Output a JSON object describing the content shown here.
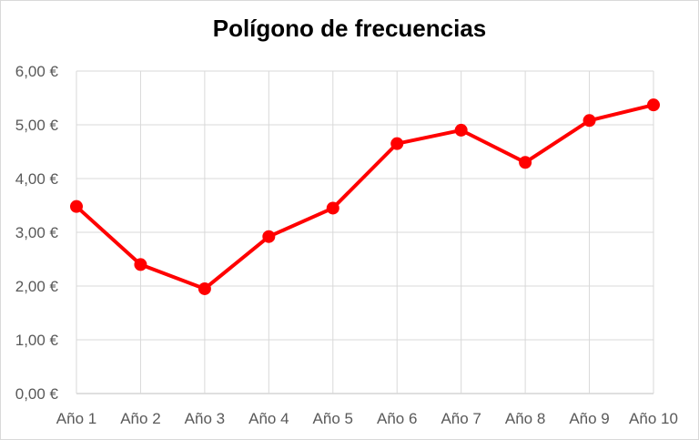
{
  "chart_data": {
    "type": "line",
    "title": "Polígono de frecuencias",
    "categories": [
      "Año 1",
      "Año 2",
      "Año 3",
      "Año 4",
      "Año 5",
      "Año 6",
      "Año 7",
      "Año 8",
      "Año 9",
      "Año 10"
    ],
    "series": [
      {
        "values": [
          3.48,
          2.4,
          1.95,
          2.92,
          3.45,
          4.65,
          4.9,
          4.3,
          5.08,
          5.37
        ],
        "color": "#ff0000"
      }
    ],
    "y_ticks": [
      "0,00 €",
      "1,00 €",
      "2,00 €",
      "3,00 €",
      "4,00 €",
      "5,00 €",
      "6,00 €"
    ],
    "ylim": [
      0,
      6
    ],
    "grid": true,
    "legend": "none"
  }
}
